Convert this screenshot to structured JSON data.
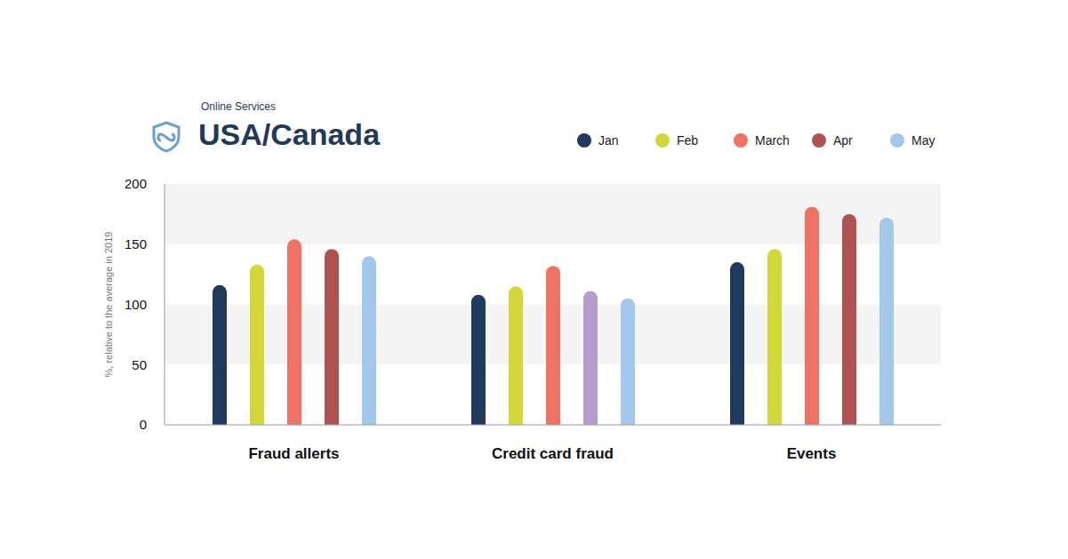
{
  "chart_data": {
    "type": "bar",
    "title": "USA/Canada",
    "subtitle": "Online Services",
    "y_label": "%, relative to the average in 2019",
    "categories": [
      "Fraud allerts",
      "Credit card fraud",
      "Events"
    ],
    "series": [
      {
        "name": "Jan",
        "color": "#1f3a5c",
        "values": [
          116,
          108,
          135
        ]
      },
      {
        "name": "Feb",
        "color": "#d3d838",
        "values": [
          133,
          115,
          146
        ]
      },
      {
        "name": "March",
        "color": "#ef7362",
        "values": [
          154,
          132,
          181
        ]
      },
      {
        "name": "Apr",
        "color": "#b0524f",
        "colors": [
          "#b0524f",
          "#b69ccb",
          "#b0524f"
        ],
        "values": [
          146,
          111,
          175
        ]
      },
      {
        "name": "May",
        "color": "#a2c9ec",
        "values": [
          140,
          105,
          172
        ]
      }
    ],
    "ylim": [
      0,
      200
    ],
    "yticks": [
      0,
      50,
      100,
      150,
      200
    ],
    "grid": true,
    "legend": "top right"
  }
}
